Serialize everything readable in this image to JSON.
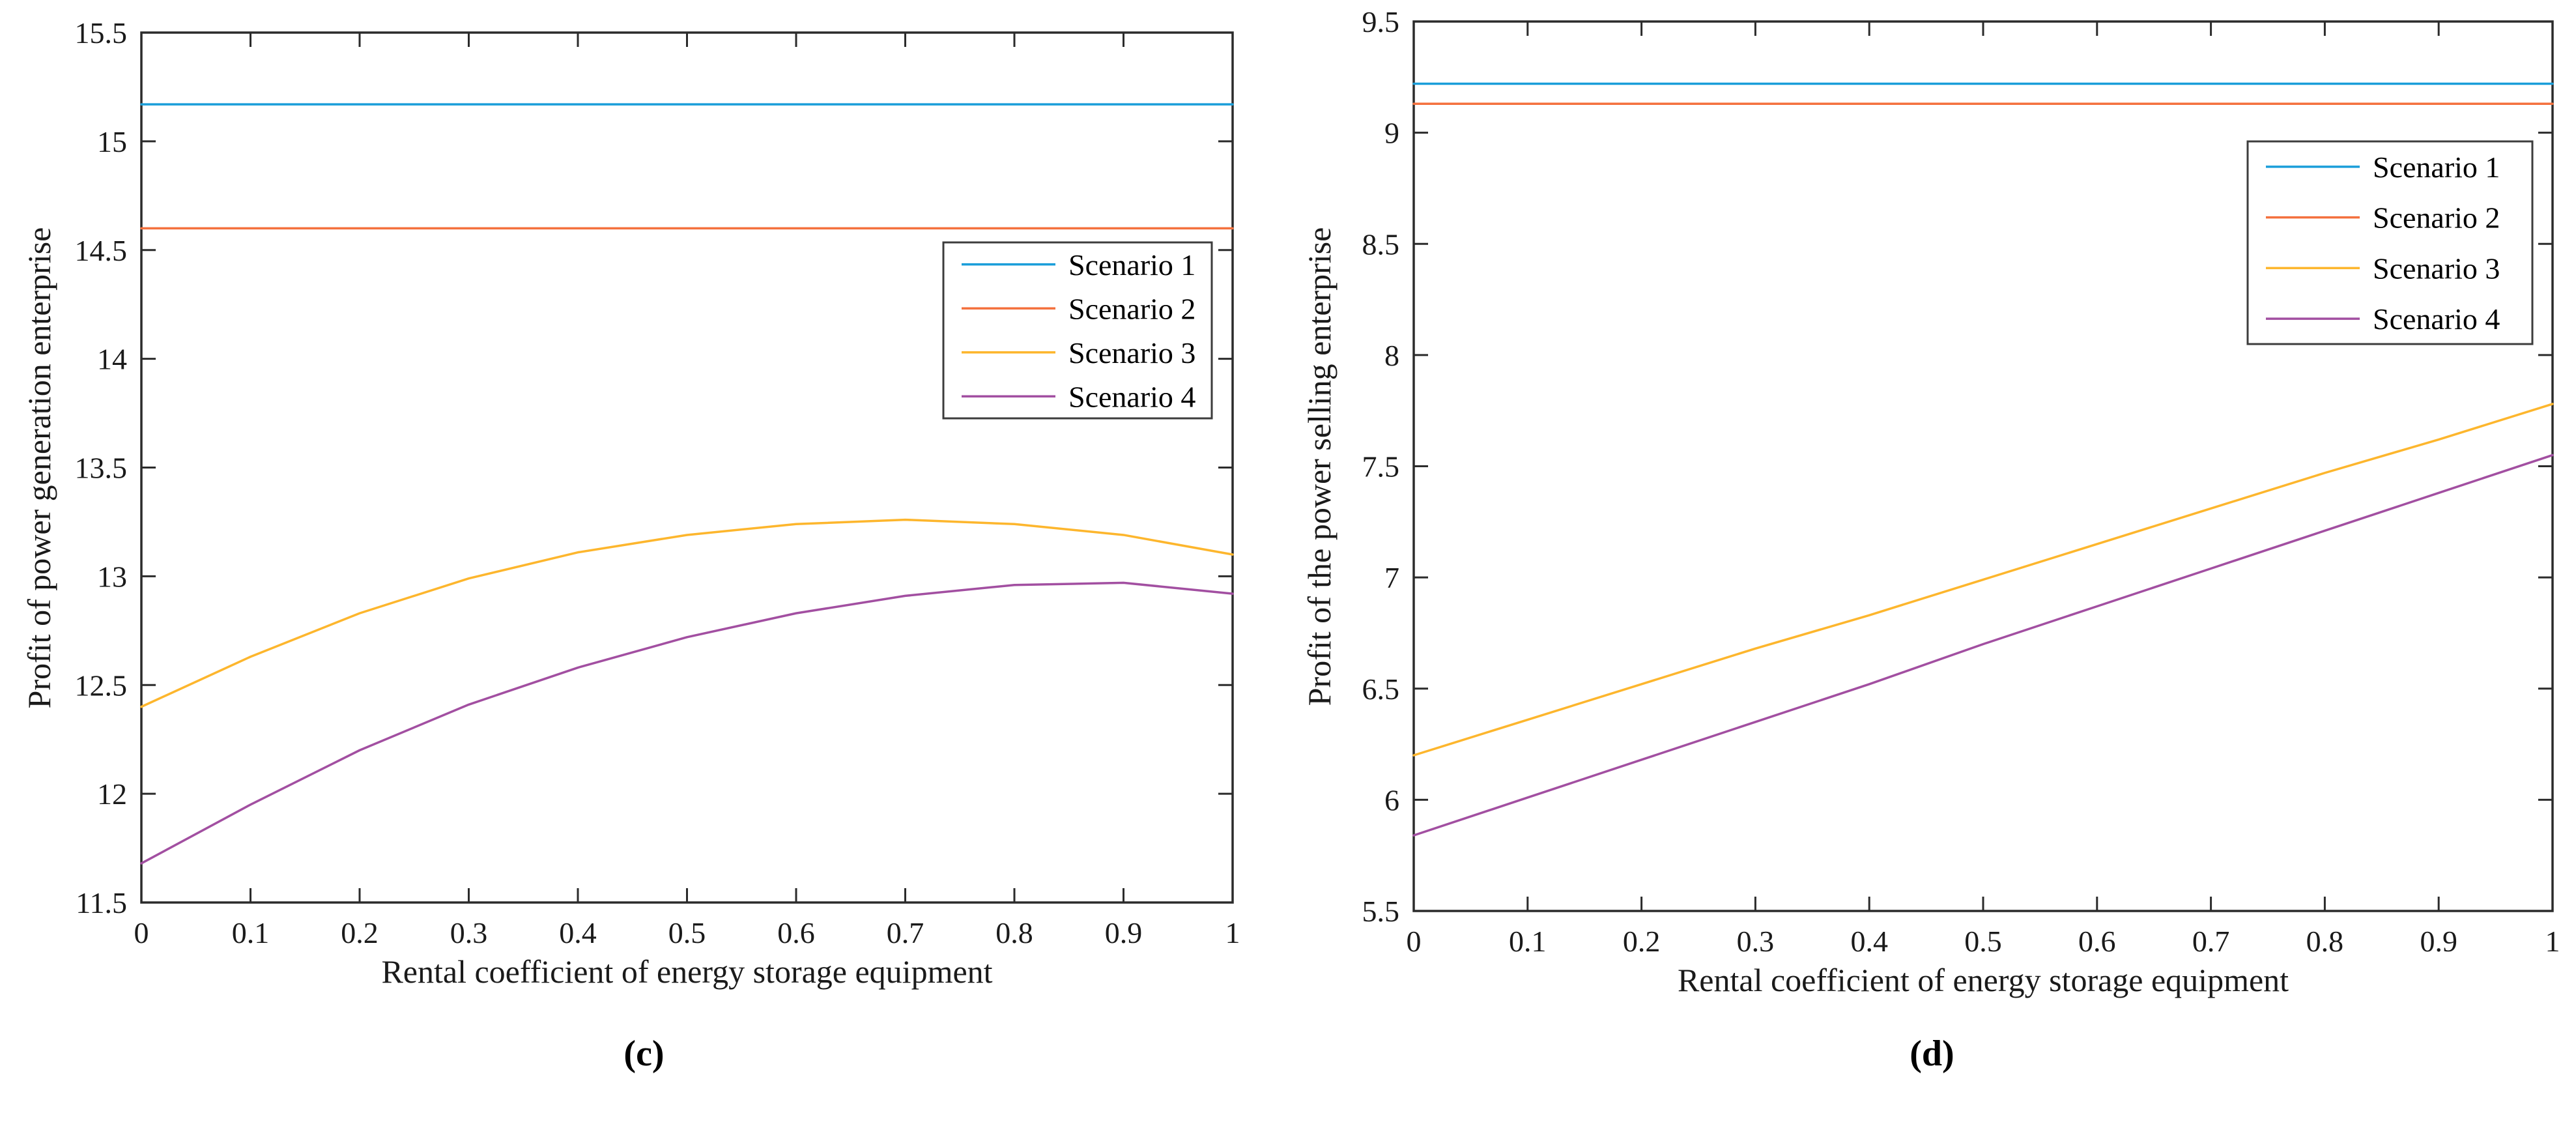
{
  "figure": {
    "background": "#ffffff",
    "axis_color": "#2b2b2b",
    "text_color": "#1a1a1a"
  },
  "chart_data": [
    {
      "id": "c",
      "type": "line",
      "caption": "(c)",
      "xlabel": "Rental coefficient of energy storage equipment",
      "ylabel": "Profit of power generation enterprise",
      "xlim": [
        0,
        1
      ],
      "ylim": [
        11.5,
        15.5
      ],
      "grid": false,
      "legend_position": "right-middle-inside",
      "xticks": [
        0,
        0.1,
        0.2,
        0.3,
        0.4,
        0.5,
        0.6,
        0.7,
        0.8,
        0.9,
        1
      ],
      "xtick_labels": [
        "0",
        "0.1",
        "0.2",
        "0.3",
        "0.4",
        "0.5",
        "0.6",
        "0.7",
        "0.8",
        "0.9",
        "1"
      ],
      "yticks": [
        11.5,
        12,
        12.5,
        13,
        13.5,
        14,
        14.5,
        15,
        15.5
      ],
      "ytick_labels": [
        "11.5",
        "12",
        "12.5",
        "13",
        "13.5",
        "14",
        "14.5",
        "15",
        "15.5"
      ],
      "x": [
        0,
        0.1,
        0.2,
        0.3,
        0.4,
        0.5,
        0.6,
        0.7,
        0.8,
        0.9,
        1
      ],
      "series": [
        {
          "name": "Scenario 1",
          "color": "#1A9ED9",
          "values": [
            15.17,
            15.17,
            15.17,
            15.17,
            15.17,
            15.17,
            15.17,
            15.17,
            15.17,
            15.17,
            15.17
          ]
        },
        {
          "name": "Scenario 2",
          "color": "#F4713E",
          "values": [
            14.6,
            14.6,
            14.6,
            14.6,
            14.6,
            14.6,
            14.6,
            14.6,
            14.6,
            14.6,
            14.6
          ]
        },
        {
          "name": "Scenario 3",
          "color": "#FDB62D",
          "values": [
            12.4,
            12.63,
            12.83,
            12.99,
            13.11,
            13.19,
            13.24,
            13.26,
            13.24,
            13.19,
            13.1
          ]
        },
        {
          "name": "Scenario 4",
          "color": "#A24FA1",
          "values": [
            11.68,
            11.95,
            12.2,
            12.41,
            12.58,
            12.72,
            12.83,
            12.91,
            12.96,
            12.97,
            12.92
          ]
        }
      ]
    },
    {
      "id": "d",
      "type": "line",
      "caption": "(d)",
      "xlabel": "Rental coefficient of energy storage equipment",
      "ylabel": "Profit of the power selling enterprise",
      "xlim": [
        0,
        1
      ],
      "ylim": [
        5.5,
        9.5
      ],
      "grid": false,
      "legend_position": "upper-right-inside",
      "xticks": [
        0,
        0.1,
        0.2,
        0.3,
        0.4,
        0.5,
        0.6,
        0.7,
        0.8,
        0.9,
        1
      ],
      "xtick_labels": [
        "0",
        "0.1",
        "0.2",
        "0.3",
        "0.4",
        "0.5",
        "0.6",
        "0.7",
        "0.8",
        "0.9",
        "1"
      ],
      "yticks": [
        5.5,
        6,
        6.5,
        7,
        7.5,
        8,
        8.5,
        9,
        9.5
      ],
      "ytick_labels": [
        "5.5",
        "6",
        "6.5",
        "7",
        "7.5",
        "8",
        "8.5",
        "9",
        "9.5"
      ],
      "x": [
        0,
        0.1,
        0.2,
        0.3,
        0.4,
        0.5,
        0.6,
        0.7,
        0.8,
        0.9,
        1
      ],
      "series": [
        {
          "name": "Scenario 1",
          "color": "#1A9ED9",
          "values": [
            9.22,
            9.22,
            9.22,
            9.22,
            9.22,
            9.22,
            9.22,
            9.22,
            9.22,
            9.22,
            9.22
          ]
        },
        {
          "name": "Scenario 2",
          "color": "#F4713E",
          "values": [
            9.13,
            9.13,
            9.13,
            9.13,
            9.13,
            9.13,
            9.13,
            9.13,
            9.13,
            9.13,
            9.13
          ]
        },
        {
          "name": "Scenario 3",
          "color": "#FDB62D",
          "values": [
            6.2,
            6.36,
            6.52,
            6.68,
            6.83,
            6.99,
            7.15,
            7.31,
            7.47,
            7.62,
            7.78
          ]
        },
        {
          "name": "Scenario 4",
          "color": "#A24FA1",
          "values": [
            5.84,
            6.01,
            6.18,
            6.35,
            6.52,
            6.7,
            6.87,
            7.04,
            7.21,
            7.38,
            7.55
          ]
        }
      ]
    }
  ]
}
